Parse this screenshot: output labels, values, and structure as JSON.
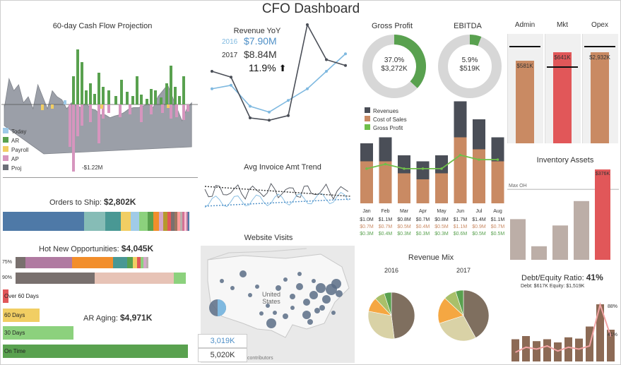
{
  "page": {
    "title": "CFO Dashboard"
  },
  "colors": {
    "blue": "#4e79a7",
    "lightblue": "#7fb9e0",
    "gray": "#8a8f99",
    "dark": "#4a4e57",
    "green": "#59a14f",
    "cogs": "#c98a63",
    "lightgreen": "#6fbf4a",
    "red": "#e15759",
    "tan": "#bfa08a",
    "brown": "#8c6a55",
    "pink": "#d695be"
  },
  "cashflow": {
    "title": "60-day Cash Flow Projection",
    "legend": [
      "Today",
      "AR",
      "Payroll",
      "AP",
      "Proj"
    ],
    "min_label": "-$1.22M"
  },
  "revenue_yoy": {
    "title": "Revenue YoY",
    "y2016_label": "2016",
    "y2016_value": "$7.90M",
    "y2017_label": "2017",
    "y2017_value": "$8.84M",
    "growth": "11.9%"
  },
  "gross_profit": {
    "title": "Gross Profit",
    "pct": "37.0%",
    "value": "$3,272K",
    "fraction": 0.37
  },
  "ebitda": {
    "title": "EBITDA",
    "pct": "5.9%",
    "value": "$519K",
    "fraction": 0.059
  },
  "opex": {
    "columns": [
      {
        "name": "Admin",
        "value": "$581K",
        "fill": 0.78,
        "target": 0.92,
        "color": "#c98a63"
      },
      {
        "name": "Mkt",
        "value": "$641K",
        "fill": 0.86,
        "target": 0.73,
        "color": "#e15759"
      },
      {
        "name": "Opex",
        "value": "$2,932K",
        "fill": 0.86,
        "target": 0.92,
        "color": "#c98a63"
      }
    ]
  },
  "orders_to_ship": {
    "label": "Orders to Ship:",
    "value": "$2,802K"
  },
  "avg_invoice": {
    "title": "Avg Invoice Amt Trend"
  },
  "website_visits": {
    "title": "Website Visits",
    "map_label": "United States",
    "kpi1": "3,019K",
    "kpi2": "5,020K",
    "attribution": "contributors"
  },
  "hot_opps": {
    "label": "Hot New Opportunities:",
    "value": "$4,045K",
    "row1": "75%",
    "row2": "90%"
  },
  "ar_aging": {
    "label": "AR Aging:",
    "value": "$4,971K",
    "buckets": [
      {
        "name": "Over 60 Days",
        "amount": 0.03,
        "color": "#e15759"
      },
      {
        "name": "60 Days",
        "amount": 0.2,
        "color": "#f1ce63"
      },
      {
        "name": "30 Days",
        "amount": 0.38,
        "color": "#8cd17d"
      },
      {
        "name": "On Time",
        "amount": 1.0,
        "color": "#59a14f"
      }
    ]
  },
  "chart_data": [
    {
      "type": "bar",
      "id": "financials",
      "categories": [
        "Jan",
        "Feb",
        "Mar",
        "Apr",
        "May",
        "Jun",
        "Jul",
        "Aug"
      ],
      "series": [
        {
          "name": "Revenues",
          "values": [
            1.0,
            1.1,
            0.8,
            0.7,
            0.8,
            1.7,
            1.4,
            1.1
          ]
        },
        {
          "name": "Cost of Sales",
          "values": [
            0.7,
            0.7,
            0.5,
            0.4,
            0.5,
            1.1,
            0.9,
            0.7
          ]
        },
        {
          "name": "Gross Profit",
          "values": [
            0.3,
            0.4,
            0.3,
            0.3,
            0.3,
            0.6,
            0.5,
            0.5
          ]
        }
      ],
      "table_rows": [
        [
          "$1.0M",
          "$1.1M",
          "$0.8M",
          "$0.7M",
          "$0.8M",
          "$1.7M",
          "$1.4M",
          "$1.1M"
        ],
        [
          "$0.7M",
          "$0.7M",
          "$0.5M",
          "$0.4M",
          "$0.5M",
          "$1.1M",
          "$0.9M",
          "$0.7M"
        ],
        [
          "$0.3M",
          "$0.4M",
          "$0.3M",
          "$0.3M",
          "$0.3M",
          "$0.6M",
          "$0.5M",
          "$0.5M"
        ]
      ]
    },
    {
      "type": "pie",
      "id": "revenue_mix",
      "title": "Revenue Mix",
      "pies": [
        {
          "name": "2016",
          "values": [
            48,
            30,
            10,
            7,
            5
          ]
        },
        {
          "name": "2017",
          "values": [
            42,
            28,
            17,
            8,
            5
          ]
        }
      ],
      "colors": [
        "#7f6f5f",
        "#d9d2a6",
        "#f5a742",
        "#a9c06a",
        "#59a14f"
      ]
    },
    {
      "type": "bar",
      "id": "inventory",
      "title": "Inventory Assets",
      "reference_label": "Max OH",
      "top_label": "$376K",
      "values": [
        0.45,
        0.15,
        0.38,
        0.65,
        1.0
      ],
      "reference": 0.78
    },
    {
      "type": "bar",
      "id": "debt_equity",
      "title": "Debt/Equity Ratio:",
      "ratio": "41%",
      "sub": "Debt: $617K  Equity: $1,519K",
      "values": [
        0.35,
        0.4,
        0.32,
        0.35,
        0.3,
        0.38,
        0.36,
        0.55,
        0.9,
        0.5
      ],
      "ratio_line": [
        0.2,
        0.28,
        0.25,
        0.3,
        0.22,
        0.28,
        0.25,
        0.3,
        0.95,
        0.45
      ],
      "label_top": "88%",
      "label_bottom": "41%"
    },
    {
      "type": "line",
      "id": "revenue_yoy",
      "series": [
        {
          "name": "2016",
          "values": [
            0.45,
            0.48,
            0.3,
            0.25,
            0.35,
            0.45,
            0.6,
            0.75
          ]
        },
        {
          "name": "2017",
          "values": [
            0.6,
            0.55,
            0.2,
            0.18,
            0.22,
            1.0,
            0.7,
            0.65
          ]
        }
      ]
    }
  ]
}
